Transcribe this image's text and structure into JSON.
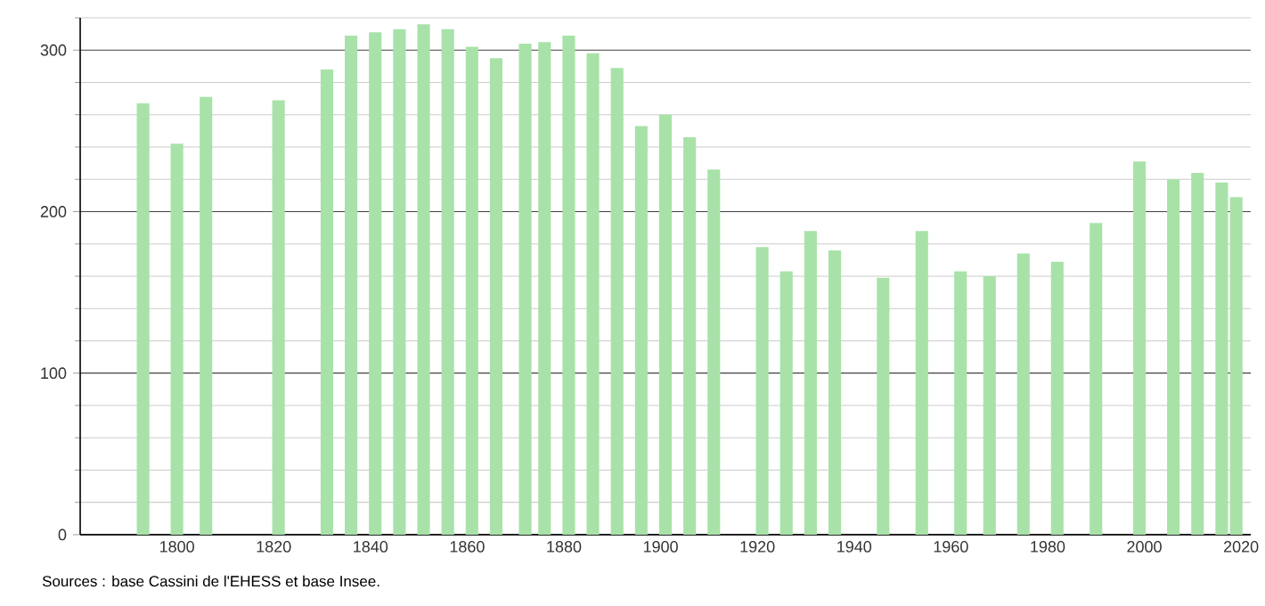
{
  "chart_data": {
    "type": "bar",
    "x": [
      1793,
      1800,
      1806,
      1821,
      1831,
      1836,
      1841,
      1846,
      1851,
      1856,
      1861,
      1866,
      1872,
      1876,
      1881,
      1886,
      1891,
      1896,
      1901,
      1906,
      1911,
      1921,
      1926,
      1931,
      1936,
      1946,
      1954,
      1962,
      1968,
      1975,
      1982,
      1990,
      1999,
      2006,
      2011,
      2016,
      2019
    ],
    "values": [
      267,
      242,
      271,
      269,
      288,
      309,
      311,
      313,
      316,
      313,
      302,
      295,
      304,
      305,
      309,
      298,
      289,
      253,
      260,
      246,
      226,
      178,
      163,
      188,
      176,
      159,
      188,
      163,
      160,
      174,
      169,
      193,
      231,
      220,
      224,
      218,
      209
    ],
    "color": "#a8e2a8",
    "xlim": [
      1780,
      2022
    ],
    "xticks": [
      1800,
      1820,
      1840,
      1860,
      1880,
      1900,
      1920,
      1940,
      1960,
      1980,
      2000,
      2020
    ],
    "ylim": [
      0,
      320
    ],
    "yticks": [
      0,
      {
        "value": 20,
        "label": null
      },
      {
        "value": 40,
        "label": null
      },
      {
        "value": 60,
        "label": null
      },
      {
        "value": 80,
        "label": null
      },
      100,
      {
        "value": 120,
        "label": null
      },
      {
        "value": 140,
        "label": null
      },
      {
        "value": 160,
        "label": null
      },
      {
        "value": 180,
        "label": null
      },
      200,
      {
        "value": 220,
        "label": null
      },
      {
        "value": 240,
        "label": null
      },
      {
        "value": 260,
        "label": null
      },
      {
        "value": 280,
        "label": null
      },
      300,
      {
        "value": 320,
        "label": null
      }
    ],
    "grid": "y",
    "annotations": [
      "Sources : base Cassini de l'EHESS et base Insee."
    ]
  }
}
